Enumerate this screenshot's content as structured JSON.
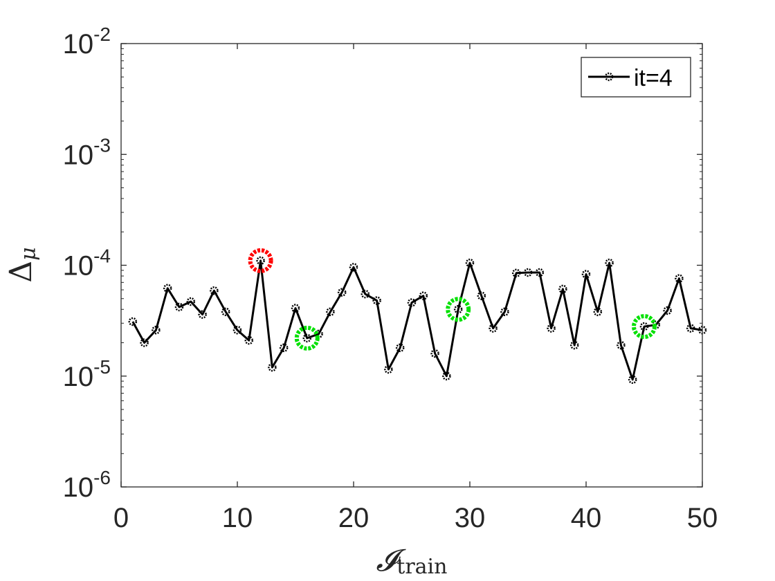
{
  "chart_data": {
    "type": "line",
    "xlabel": {
      "main": "𝓘",
      "sub": "train"
    },
    "ylabel": {
      "main": "Δ",
      "sub": "μ"
    },
    "xlim": [
      0,
      50
    ],
    "ylim": [
      1e-06,
      0.01
    ],
    "yscale": "log",
    "grid": false,
    "legend_position": "top-right",
    "x_ticks": [
      0,
      10,
      20,
      30,
      40,
      50
    ],
    "y_ticks": [
      {
        "base": "10",
        "exp": "-6",
        "value": 1e-06
      },
      {
        "base": "10",
        "exp": "-5",
        "value": 1e-05
      },
      {
        "base": "10",
        "exp": "-4",
        "value": 0.0001
      },
      {
        "base": "10",
        "exp": "-3",
        "value": 0.001
      },
      {
        "base": "10",
        "exp": "-2",
        "value": 0.01
      }
    ],
    "series": [
      {
        "name": "it=4",
        "color": "#000000",
        "marker": "circle",
        "x": [
          1,
          2,
          3,
          4,
          5,
          6,
          7,
          8,
          9,
          10,
          11,
          12,
          13,
          14,
          15,
          16,
          17,
          18,
          19,
          20,
          21,
          22,
          23,
          24,
          25,
          26,
          27,
          28,
          29,
          30,
          31,
          32,
          33,
          34,
          35,
          36,
          37,
          38,
          39,
          40,
          41,
          42,
          43,
          44,
          45,
          46,
          47,
          48,
          49,
          50
        ],
        "y": [
          3.1e-05,
          2e-05,
          2.6e-05,
          6.2e-05,
          4.2e-05,
          4.7e-05,
          3.6e-05,
          5.9e-05,
          3.8e-05,
          2.6e-05,
          2.1e-05,
          0.00011,
          1.2e-05,
          1.8e-05,
          4.1e-05,
          2.2e-05,
          2.4e-05,
          3.8e-05,
          5.7e-05,
          9.6e-05,
          5.5e-05,
          4.8e-05,
          1.15e-05,
          1.8e-05,
          4.6e-05,
          5.3e-05,
          1.6e-05,
          1e-05,
          4e-05,
          0.000105,
          5.3e-05,
          2.7e-05,
          3.8e-05,
          8.5e-05,
          8.6e-05,
          8.6e-05,
          2.7e-05,
          6.1e-05,
          1.9e-05,
          8.3e-05,
          3.8e-05,
          0.000105,
          1.9e-05,
          9.3e-06,
          2.8e-05,
          2.9e-05,
          3.9e-05,
          7.6e-05,
          2.7e-05,
          2.6e-05
        ]
      }
    ],
    "highlights": [
      {
        "x": 12,
        "y": 0.00011,
        "color": "#ff0000"
      },
      {
        "x": 16,
        "y": 2.2e-05,
        "color": "#00e000"
      },
      {
        "x": 29,
        "y": 4e-05,
        "color": "#00e000"
      },
      {
        "x": 45,
        "y": 2.8e-05,
        "color": "#00e000"
      }
    ]
  }
}
